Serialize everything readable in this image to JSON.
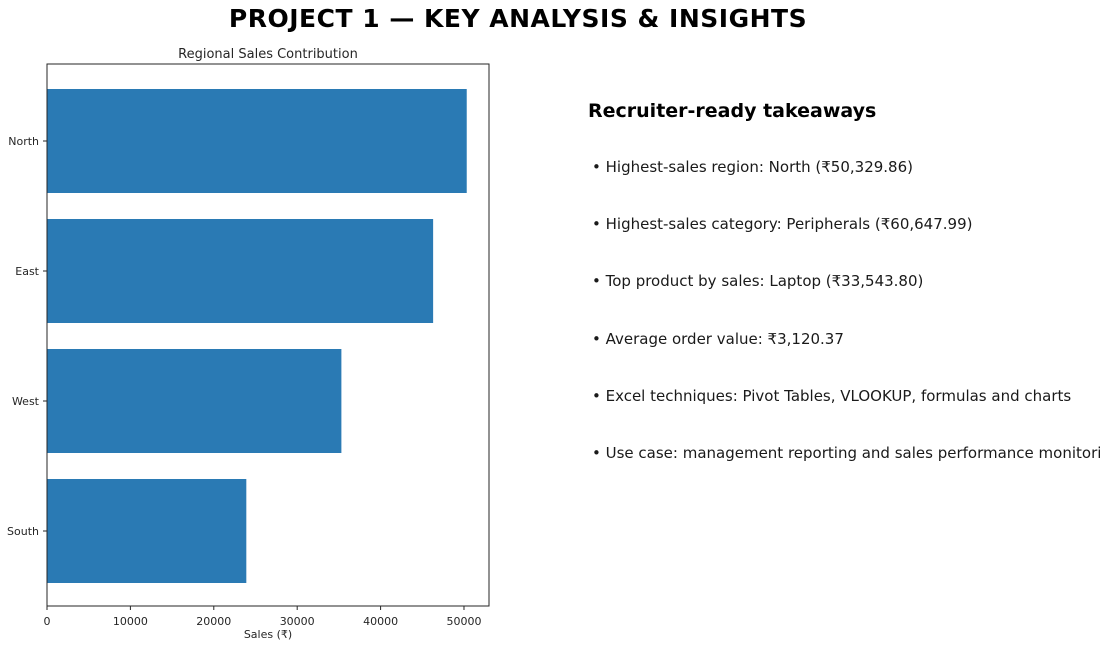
{
  "page": {
    "title": "PROJECT 1 — KEY ANALYSIS & INSIGHTS"
  },
  "chart_data": {
    "type": "bar",
    "orientation": "horizontal",
    "title": "Regional Sales Contribution",
    "xlabel": "Sales (₹)",
    "ylabel": "",
    "categories": [
      "North",
      "East",
      "West",
      "South"
    ],
    "values": [
      50329.86,
      46300,
      35300,
      23900
    ],
    "xlim": [
      0,
      53000
    ],
    "xticks": [
      0,
      10000,
      20000,
      30000,
      40000,
      50000
    ],
    "xtick_labels": [
      "0",
      "10000",
      "20000",
      "30000",
      "40000",
      "50000"
    ],
    "grid": false,
    "bar_color": "#2a7ab4"
  },
  "insights": {
    "heading": "Recruiter-ready takeaways",
    "items": [
      "• Highest-sales region: North (₹50,329.86)",
      "• Highest-sales category: Peripherals (₹60,647.99)",
      "• Top product by sales: Laptop (₹33,543.80)",
      "• Average order value: ₹3,120.37",
      "• Excel techniques: Pivot Tables, VLOOKUP, formulas and charts",
      "• Use case: management reporting and sales performance monitoring"
    ]
  }
}
